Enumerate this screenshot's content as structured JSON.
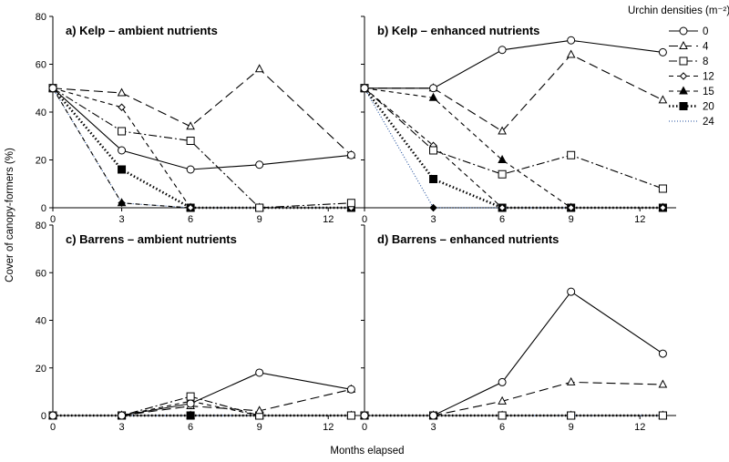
{
  "figure": {
    "ylabel": "Cover of canopy-formers (%)",
    "xlabel": "Months elapsed",
    "legend": {
      "title": "Urchin densities (m⁻²):",
      "placement": "right",
      "entries": [
        "0",
        "4",
        "8",
        "12",
        "15",
        "20",
        "24"
      ]
    }
  },
  "series_style": {
    "0": {
      "marker": "circle-open",
      "dash": "solid",
      "color": "#000000"
    },
    "4": {
      "marker": "triangle-open",
      "dash": "longdash",
      "color": "#000000"
    },
    "8": {
      "marker": "square-open",
      "dash": "dashdot",
      "color": "#000000"
    },
    "12": {
      "marker": "diamond-open",
      "dash": "dash",
      "color": "#000000"
    },
    "15": {
      "marker": "triangle-fill",
      "dash": "dash",
      "color": "#000000"
    },
    "20": {
      "marker": "square-fill",
      "dash": "dotthick",
      "color": "#000000"
    },
    "24": {
      "marker": "diamond-fill",
      "dash": "dotthin",
      "color": "#1f4e9c"
    }
  },
  "chart_data": [
    {
      "type": "line",
      "title": "a) Kelp – ambient nutrients",
      "xticks": [
        0,
        3,
        6,
        9,
        12
      ],
      "yticks": [
        0,
        20,
        40,
        60,
        80
      ],
      "xlim": [
        0,
        13.5
      ],
      "ylim": [
        0,
        80
      ],
      "series": [
        {
          "name": "0",
          "x": [
            0,
            3,
            6,
            9,
            13
          ],
          "y": [
            50,
            24,
            16,
            18,
            22
          ]
        },
        {
          "name": "4",
          "x": [
            0,
            3,
            6,
            9,
            13
          ],
          "y": [
            50,
            48,
            34,
            58,
            22
          ]
        },
        {
          "name": "8",
          "x": [
            0,
            3,
            6,
            9,
            13
          ],
          "y": [
            50,
            32,
            28,
            0,
            2
          ]
        },
        {
          "name": "12",
          "x": [
            0,
            3,
            6,
            9,
            13
          ],
          "y": [
            50,
            42,
            0,
            0,
            0
          ]
        },
        {
          "name": "15",
          "x": [
            0,
            3,
            6,
            9,
            13
          ],
          "y": [
            50,
            2,
            0,
            0,
            0
          ]
        },
        {
          "name": "20",
          "x": [
            0,
            3,
            6,
            9,
            13
          ],
          "y": [
            50,
            16,
            0,
            0,
            0
          ]
        },
        {
          "name": "24",
          "x": [
            0,
            3,
            6,
            9,
            13
          ],
          "y": [
            50,
            2,
            0,
            0,
            0
          ]
        }
      ]
    },
    {
      "type": "line",
      "title": "b) Kelp – enhanced nutrients",
      "xticks": [
        0,
        3,
        6,
        9,
        12
      ],
      "yticks": [
        0,
        20,
        40,
        60,
        80
      ],
      "xlim": [
        0,
        13.5
      ],
      "ylim": [
        0,
        80
      ],
      "series": [
        {
          "name": "0",
          "x": [
            0,
            3,
            6,
            9,
            13
          ],
          "y": [
            50,
            50,
            66,
            70,
            65
          ]
        },
        {
          "name": "4",
          "x": [
            0,
            3,
            6,
            9,
            13
          ],
          "y": [
            50,
            50,
            32,
            64,
            45
          ]
        },
        {
          "name": "8",
          "x": [
            0,
            3,
            6,
            9,
            13
          ],
          "y": [
            50,
            24,
            14,
            22,
            8
          ]
        },
        {
          "name": "12",
          "x": [
            0,
            3,
            6,
            9,
            13
          ],
          "y": [
            50,
            26,
            0,
            0,
            0
          ]
        },
        {
          "name": "15",
          "x": [
            0,
            3,
            6,
            9,
            13
          ],
          "y": [
            50,
            46,
            20,
            0,
            0
          ]
        },
        {
          "name": "20",
          "x": [
            0,
            3,
            6,
            9,
            13
          ],
          "y": [
            50,
            12,
            0,
            0,
            0
          ]
        },
        {
          "name": "24",
          "x": [
            0,
            3,
            6,
            9,
            13
          ],
          "y": [
            50,
            0,
            0,
            0,
            0
          ]
        }
      ]
    },
    {
      "type": "line",
      "title": "c) Barrens – ambient nutrients",
      "xticks": [
        0,
        3,
        6,
        9,
        12
      ],
      "yticks": [
        0,
        20,
        40,
        60,
        80
      ],
      "xlim": [
        0,
        13.5
      ],
      "ylim": [
        0,
        80
      ],
      "series": [
        {
          "name": "0",
          "x": [
            0,
            3,
            6,
            9,
            13
          ],
          "y": [
            0,
            0,
            5,
            18,
            11
          ]
        },
        {
          "name": "4",
          "x": [
            0,
            3,
            6,
            9,
            13
          ],
          "y": [
            0,
            0,
            4,
            2,
            11
          ]
        },
        {
          "name": "8",
          "x": [
            0,
            3,
            6,
            9,
            13
          ],
          "y": [
            0,
            0,
            8,
            0,
            0
          ]
        },
        {
          "name": "12",
          "x": [
            0,
            3,
            6,
            9,
            13
          ],
          "y": [
            0,
            0,
            6,
            0,
            0
          ]
        },
        {
          "name": "15",
          "x": [
            0,
            3,
            6,
            9,
            13
          ],
          "y": [
            0,
            0,
            0,
            0,
            0
          ]
        },
        {
          "name": "20",
          "x": [
            0,
            3,
            6,
            9,
            13
          ],
          "y": [
            0,
            0,
            0,
            0,
            0
          ]
        },
        {
          "name": "24",
          "x": [
            0,
            3,
            6,
            9,
            13
          ],
          "y": [
            0,
            0,
            0,
            0,
            0
          ]
        }
      ]
    },
    {
      "type": "line",
      "title": "d) Barrens – enhanced nutrients",
      "xticks": [
        0,
        3,
        6,
        9,
        12
      ],
      "yticks": [
        0,
        20,
        40,
        60,
        80
      ],
      "xlim": [
        0,
        13.5
      ],
      "ylim": [
        0,
        80
      ],
      "series": [
        {
          "name": "0",
          "x": [
            0,
            3,
            6,
            9,
            13
          ],
          "y": [
            0,
            0,
            14,
            52,
            26
          ]
        },
        {
          "name": "4",
          "x": [
            0,
            3,
            6,
            9,
            13
          ],
          "y": [
            0,
            0,
            6,
            14,
            13
          ]
        },
        {
          "name": "8",
          "x": [
            0,
            3,
            6,
            9,
            13
          ],
          "y": [
            0,
            0,
            0,
            0,
            0
          ]
        },
        {
          "name": "12",
          "x": [
            0,
            3,
            6,
            9,
            13
          ],
          "y": [
            0,
            0,
            0,
            0,
            0
          ]
        },
        {
          "name": "15",
          "x": [
            0,
            3,
            6,
            9,
            13
          ],
          "y": [
            0,
            0,
            0,
            0,
            0
          ]
        },
        {
          "name": "20",
          "x": [
            0,
            3,
            6,
            9,
            13
          ],
          "y": [
            0,
            0,
            0,
            0,
            0
          ]
        },
        {
          "name": "24",
          "x": [
            0,
            3,
            6,
            9,
            13
          ],
          "y": [
            0,
            0,
            0,
            0,
            0
          ]
        }
      ]
    }
  ]
}
